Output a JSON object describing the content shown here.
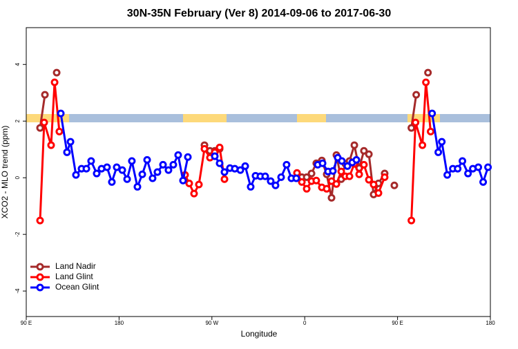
{
  "chart_data": {
    "type": "line",
    "title": "30N-35N February (Ver 8)   2014-09-06 to 2017-06-30",
    "xlabel": "Longitude",
    "ylabel": "XCO2 - MLO trend (ppm)",
    "xlim": [
      90,
      540
    ],
    "ylim": [
      -4.9,
      5.3
    ],
    "xticks": [
      {
        "value": 90,
        "label": "90 E"
      },
      {
        "value": 180,
        "label": "180"
      },
      {
        "value": 270,
        "label": "90 W"
      },
      {
        "value": 360,
        "label": "0"
      },
      {
        "value": 450,
        "label": "90 E"
      },
      {
        "value": 540,
        "label": "180"
      }
    ],
    "yticks": [
      -4,
      -2,
      0,
      2,
      4
    ],
    "legend": "bottom-left",
    "series": [
      {
        "name": "Land Nadir",
        "color": "#a52a2a",
        "x": [
          103.4,
          108.1,
          null,
          119.5,
          null,
          262.8,
          268.1,
          272.8,
          277.5,
          null,
          357.2,
          361.9,
          366.6,
          371.2,
          376.6,
          381.3,
          386,
          390.7,
          395.4,
          399.4,
          403.4,
          408.1,
          412.8,
          417.4,
          422.2,
          426.8,
          431.5,
          437.5,
          null,
          446.9,
          null,
          463.4,
          468.1,
          null,
          479.5
        ],
        "values": [
          1.76,
          2.93,
          null,
          3.71,
          null,
          1.15,
          0.95,
          0.95,
          1.02,
          null,
          0.02,
          0.02,
          0.15,
          0.51,
          0.61,
          0.12,
          -0.71,
          0.8,
          -0.05,
          0.49,
          0.59,
          1.15,
          0.34,
          0.95,
          0.83,
          -0.59,
          -0.2,
          0.15,
          null,
          -0.27,
          null,
          1.76,
          2.93,
          null,
          3.71
        ]
      },
      {
        "name": "Land Glint",
        "color": "#ff0000",
        "x": [
          103.4,
          107.4,
          114.1,
          117.5,
          122.1,
          null,
          244,
          248,
          252.7,
          257.4,
          262.8,
          268.1,
          272.8,
          277.5,
          282.2,
          null,
          352.5,
          357.2,
          361.9,
          366.6,
          371.2,
          376.6,
          381.3,
          386,
          390.7,
          395.4,
          399.4,
          403.4,
          408.1,
          412.8,
          417.4,
          422.2,
          426.8,
          431.5,
          437.5,
          null,
          463.4,
          467.4,
          474.1,
          477.5,
          482.1
        ],
        "values": [
          -1.51,
          1.95,
          1.15,
          3.37,
          1.63,
          null,
          0.1,
          -0.2,
          -0.56,
          -0.24,
          1.02,
          0.71,
          0.9,
          1.07,
          -0.05,
          null,
          0.17,
          -0.15,
          -0.39,
          -0.12,
          -0.1,
          -0.34,
          -0.39,
          -0.12,
          -0.22,
          0.22,
          0.05,
          0.05,
          0.49,
          0.12,
          0.46,
          -0.07,
          -0.24,
          -0.54,
          0.02,
          null,
          -1.51,
          1.95,
          1.15,
          3.37,
          1.63
        ]
      },
      {
        "name": "Ocean Glint",
        "color": "#0000ff",
        "x": [
          123.5,
          129.5,
          132.9,
          138.2,
          143.6,
          148.3,
          152.9,
          158.3,
          163,
          168.3,
          173,
          177.7,
          183.1,
          187.8,
          192.4,
          197.8,
          202.5,
          207.2,
          212.5,
          217.2,
          222.6,
          227.9,
          232.6,
          237.3,
          242,
          246.7,
          null,
          272.8,
          277.5,
          282.2,
          287.5,
          292.2,
          297.6,
          302.3,
          307.6,
          312.3,
          317,
          321.7,
          327,
          331.7,
          337.1,
          342.4,
          347.1,
          351.8,
          null,
          372.6,
          377.3,
          382.6,
          387.3,
          392,
          396,
          401.4,
          406.1,
          410.1,
          null,
          483.5,
          489.5,
          492.9,
          498.2,
          503.6,
          508.3,
          512.9,
          518.3,
          523,
          528.3,
          533,
          537.7
        ],
        "values": [
          2.27,
          0.9,
          1.27,
          0.1,
          0.32,
          0.32,
          0.59,
          0.15,
          0.32,
          0.37,
          -0.15,
          0.37,
          0.27,
          -0.05,
          0.59,
          -0.32,
          0.12,
          0.63,
          -0.02,
          0.2,
          0.46,
          0.27,
          0.46,
          0.8,
          -0.1,
          0.73,
          null,
          0.76,
          0.51,
          0.2,
          0.34,
          0.32,
          0.27,
          0.41,
          -0.32,
          0.07,
          0.05,
          0.05,
          -0.12,
          -0.27,
          0.02,
          0.46,
          -0.02,
          -0.02,
          null,
          0.46,
          0.51,
          0.22,
          0.24,
          0.71,
          0.59,
          0.41,
          0.54,
          0.63,
          null,
          2.27,
          0.9,
          1.27,
          0.1,
          0.32,
          0.32,
          0.59,
          0.15,
          0.32,
          0.37,
          -0.15,
          0.37
        ]
      }
    ]
  }
}
